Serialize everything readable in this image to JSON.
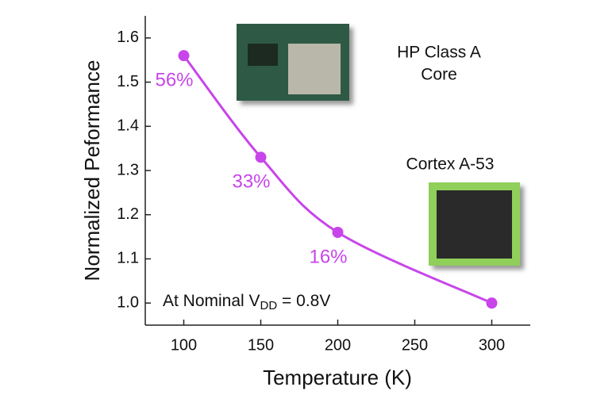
{
  "chart_data": {
    "type": "line",
    "x_label": "Temperature (K)",
    "y_label": "Normalized Peformance",
    "x": [
      100,
      150,
      200,
      300
    ],
    "series": [
      {
        "name": "Normalized Peformance",
        "color": "#c845ea",
        "values": [
          1.56,
          1.33,
          1.16,
          1.0
        ]
      }
    ],
    "xlim": [
      75,
      325
    ],
    "xticks": [
      100,
      150,
      200,
      250,
      300
    ],
    "ylim": [
      0.95,
      1.65
    ],
    "yticks": [
      {
        "value": 1.0,
        "label": "1.0"
      },
      1.1,
      1.2,
      1.3,
      1.4,
      1.5,
      1.6
    ],
    "percent_labels": [
      "56%",
      "33%",
      "16%"
    ],
    "hp_label": [
      "HP Class A",
      "Core"
    ],
    "cortex_label": "Cortex A-53",
    "nominal_note": [
      "At Nominal V",
      "DD",
      " = 0.8V"
    ]
  }
}
